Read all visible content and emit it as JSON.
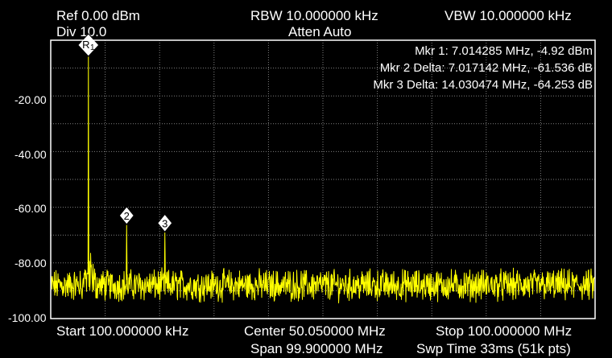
{
  "header": {
    "ref": "Ref 0.00 dBm",
    "div": "Div 10.0",
    "rbw": "RBW 10.000000 kHz",
    "atten": "Atten Auto",
    "vbw": "VBW 10.000000 kHz"
  },
  "footer": {
    "start": "Start 100.000000 kHz",
    "center": "Center 50.050000 MHz",
    "span": "Span 99.900000 MHz",
    "stop": "Stop 100.000000 MHz",
    "sweep": "Swp Time 33ms (51k pts)"
  },
  "markers": {
    "mkr1": "Mkr 1: 7.014285 MHz, -4.92 dBm",
    "mkr2": "Mkr 2 Delta: 7.017142 MHz, -61.536 dB",
    "mkr3": "Mkr 3 Delta: 14.030474 MHz, -64.253 dB",
    "labels": [
      "R",
      "1",
      "2",
      "3"
    ]
  },
  "colors": {
    "trace": "#ffff00",
    "grid": "#7f7f7f",
    "frame": "#ffffff",
    "background": "#000000"
  },
  "chart_data": {
    "type": "line",
    "xlim": [
      0.1,
      100.0
    ],
    "ylim": [
      -100,
      0
    ],
    "yticks": [
      "-20.00",
      "-40.00",
      "-60.00",
      "-80.00",
      "-100.00"
    ],
    "x_divisions": 10,
    "y_divisions": 10,
    "noise_floor_dbm": -88,
    "peaks": [
      {
        "marker": "1",
        "x_mhz": 7.014285,
        "y_dbm": -4.92
      },
      {
        "marker": "2",
        "x_mhz": 14.031427,
        "y_dbm": -66.456
      },
      {
        "marker": "3",
        "x_mhz": 21.044759,
        "y_dbm": -69.173
      }
    ]
  }
}
